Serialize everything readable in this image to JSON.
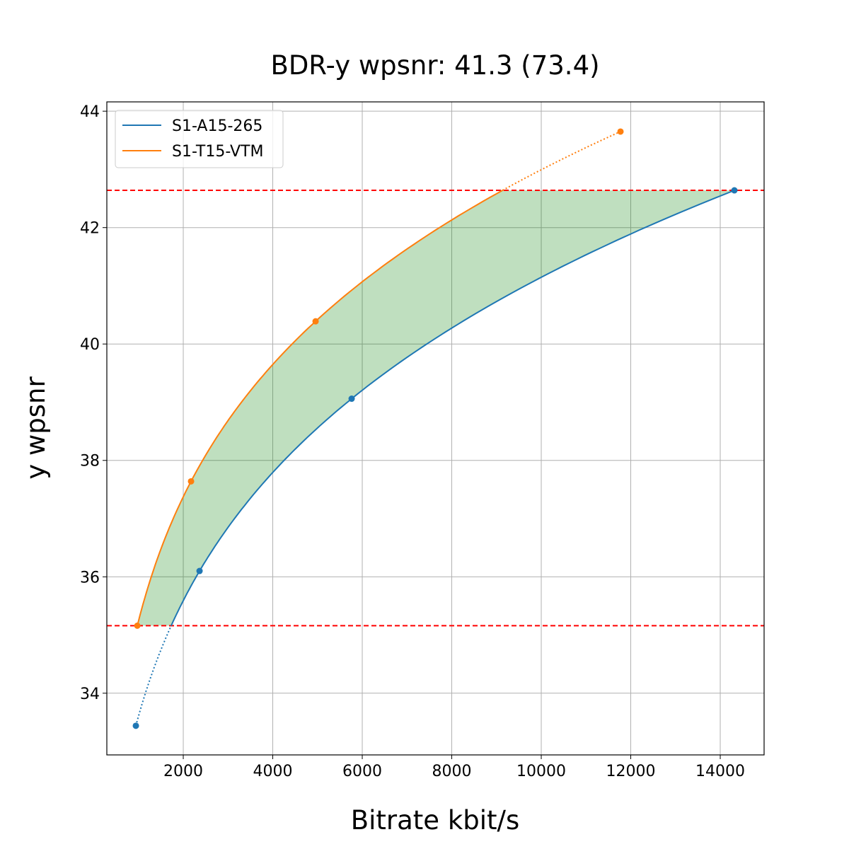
{
  "chart_data": {
    "type": "line",
    "title": "BDR-y wpsnr: 41.3 (73.4)",
    "xlabel": "Bitrate kbit/s",
    "ylabel": "y wpsnr",
    "xlim": [
      292,
      14980
    ],
    "ylim": [
      32.94,
      44.16
    ],
    "xticks": [
      2000,
      4000,
      6000,
      8000,
      10000,
      12000,
      14000
    ],
    "yticks": [
      34,
      36,
      38,
      40,
      42,
      44
    ],
    "grid": true,
    "legend_placement": "top-left",
    "series": [
      {
        "name": "S1-A15-265",
        "color": "#1f77b4",
        "x": [
          941,
          2364,
          5763,
          14316
        ],
        "y": [
          33.44,
          36.1,
          39.06,
          42.64
        ]
      },
      {
        "name": "S1-T15-VTM",
        "color": "#ff7f0e",
        "x": [
          973,
          2174,
          4957,
          11771
        ],
        "y": [
          35.16,
          37.64,
          40.39,
          43.65
        ]
      }
    ],
    "overlap_lines": {
      "y": [
        35.16,
        42.64
      ],
      "color": "#ff0000",
      "style": "dashed"
    },
    "fill_between": {
      "color": "#008000",
      "opacity": 0.25
    }
  }
}
